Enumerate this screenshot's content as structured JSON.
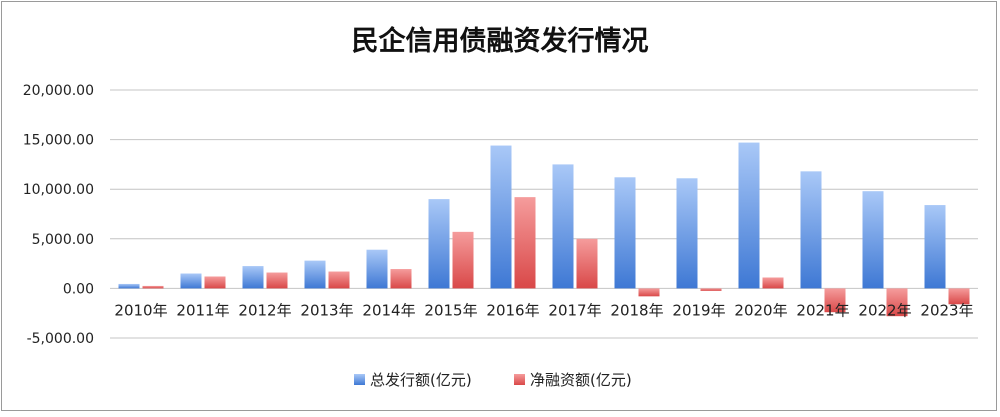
{
  "chart_data": {
    "type": "bar",
    "title": "民企信用债融资发行情况",
    "xlabel": "",
    "ylabel": "",
    "categories": [
      "2010年",
      "2011年",
      "2012年",
      "2013年",
      "2014年",
      "2015年",
      "2016年",
      "2017年",
      "2018年",
      "2019年",
      "2020年",
      "2021年",
      "2022年",
      "2023年"
    ],
    "series": [
      {
        "name": "总发行额(亿元)",
        "color": "#4f86d9",
        "values": [
          450,
          1500,
          2250,
          2800,
          3900,
          9000,
          14400,
          12500,
          11200,
          11100,
          14700,
          11800,
          9800,
          8400
        ]
      },
      {
        "name": "净融资额(亿元)",
        "color": "#e05a5a",
        "values": [
          250,
          1200,
          1600,
          1700,
          1950,
          5700,
          9200,
          5000,
          -800,
          -250,
          1100,
          -2400,
          -2800,
          -1600
        ]
      }
    ],
    "ylim": [
      -5000,
      20000
    ],
    "yticks": [
      "20,000.00",
      "15,000.00",
      "10,000.00",
      "5,000.00",
      "0.00",
      "-5,000.00"
    ],
    "ytick_values": [
      20000,
      15000,
      10000,
      5000,
      0,
      -5000
    ],
    "grid": true,
    "legend_position": "bottom"
  }
}
